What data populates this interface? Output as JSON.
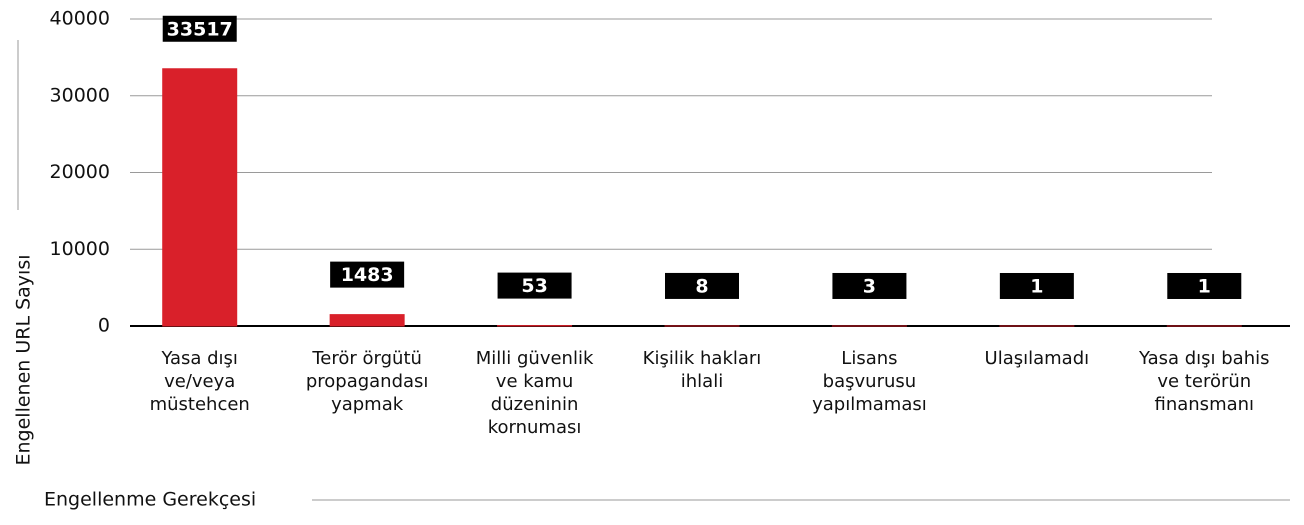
{
  "chart_data": {
    "type": "bar",
    "x_label": "Engellenme Gerekçesi",
    "y_label": "Engellenen URL Sayısı",
    "categories": [
      "Yasa dışı\nve/veya\nmüstehcen",
      "Terör örgütü\npropagandası\nyapmak",
      "Milli güvenlik\nve kamu\ndüzeninin\nkornuması",
      "Kişilik hakları\nihlali",
      "Lisans\nbaşvurusu\nyapılmaması",
      "Ulaşılamadı",
      "Yasa dışı bahis\nve terörün\nfinansmanı"
    ],
    "values": [
      33517,
      1483,
      53,
      8,
      3,
      1,
      1
    ],
    "color": "#d9202a",
    "ylim": [
      0,
      40000
    ],
    "yticks": [
      0,
      10000,
      20000,
      30000,
      40000
    ],
    "grid": true
  }
}
